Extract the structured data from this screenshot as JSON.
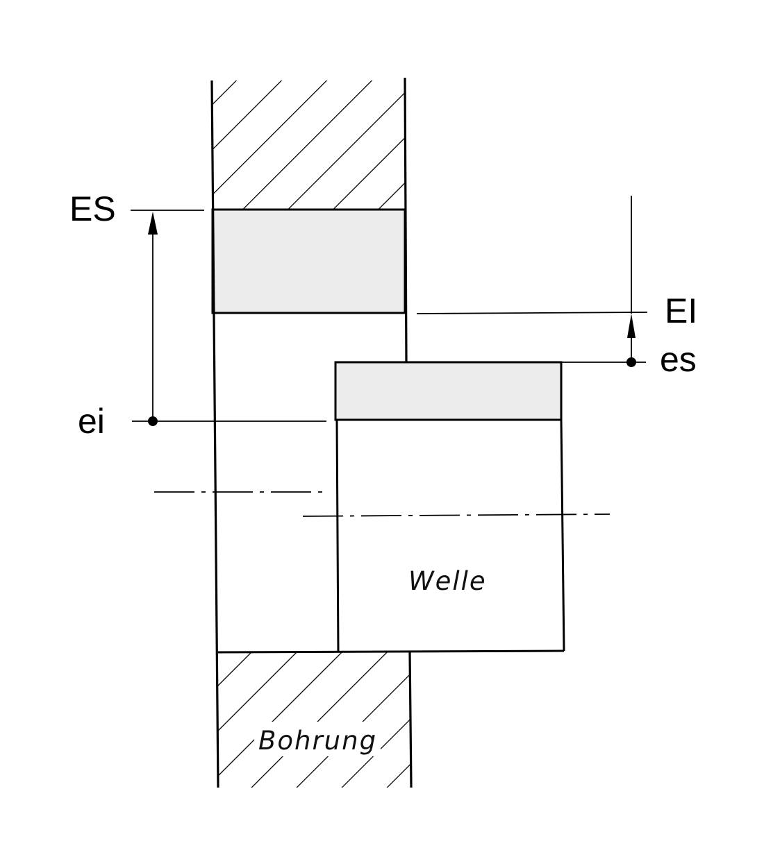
{
  "labels": {
    "es_upper_hole": "ES",
    "ei_lower_hole": "EI",
    "es_upper_shaft": "es",
    "ei_lower_shaft": "ei"
  },
  "parts": {
    "shaft": "Welle",
    "bore": "Bohrung"
  },
  "colors": {
    "tolerance_zone_fill": "#ececec",
    "line": "#000000",
    "background": "#ffffff"
  }
}
